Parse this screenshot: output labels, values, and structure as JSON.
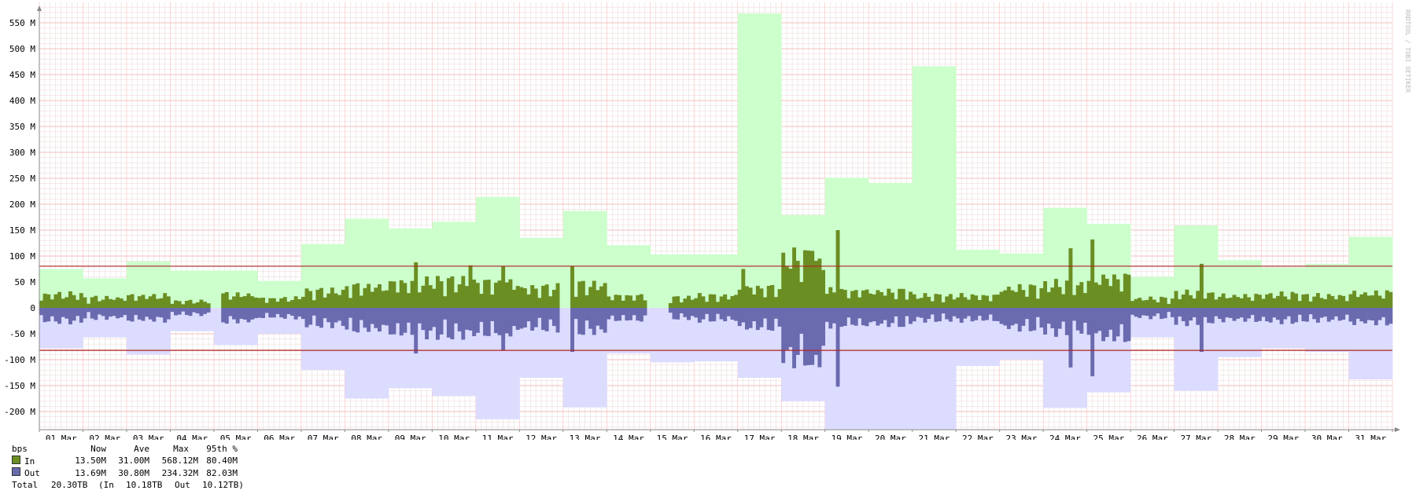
{
  "watermark": "RRDTOOL / TOBI OETIKER",
  "colors": {
    "in_bar": "#6b8e23",
    "in_max": "#ccffcc",
    "out_bar": "#6a6aaf",
    "out_max": "#dcdcff",
    "p95_line": "#b22222",
    "grid_major": "#f4b0b0",
    "grid_minor": "#f7dada",
    "vgrid": "#d9d9d9"
  },
  "legend": {
    "header": [
      "bps",
      "Now",
      "Ave",
      "Max",
      "95th %"
    ],
    "rows": [
      {
        "name": "In",
        "now": "13.50M",
        "ave": "31.00M",
        "max": "568.12M",
        "p95": "80.40M"
      },
      {
        "name": "Out",
        "now": "13.69M",
        "ave": "30.80M",
        "max": "234.32M",
        "p95": "82.03M"
      }
    ],
    "total": {
      "label": "Total",
      "value": "20.30TB",
      "in_label": "(In",
      "in_value": "10.18TB",
      "out_label": "Out",
      "out_value": "10.12TB)"
    }
  },
  "chart_data": {
    "type": "area",
    "y_unit": "bps",
    "ylim": [
      -235000000,
      590000000
    ],
    "yticks": [
      -200000000,
      -150000000,
      -100000000,
      -50000000,
      0,
      50000000,
      100000000,
      150000000,
      200000000,
      250000000,
      300000000,
      350000000,
      400000000,
      450000000,
      500000000,
      550000000
    ],
    "ytick_labels": [
      "-200 M",
      "-150 M",
      "-100 M",
      "-50 M",
      "0",
      "50 M",
      "100 M",
      "150 M",
      "200 M",
      "250 M",
      "300 M",
      "350 M",
      "400 M",
      "450 M",
      "500 M",
      "550 M"
    ],
    "x_labels": [
      "01 Mar",
      "02 Mar",
      "03 Mar",
      "04 Mar",
      "05 Mar",
      "06 Mar",
      "07 Mar",
      "08 Mar",
      "09 Mar",
      "10 Mar",
      "11 Mar",
      "12 Mar",
      "13 Mar",
      "14 Mar",
      "15 Mar",
      "16 Mar",
      "17 Mar",
      "18 Mar",
      "19 Mar",
      "20 Mar",
      "21 Mar",
      "22 Mar",
      "23 Mar",
      "24 Mar",
      "25 Mar",
      "26 Mar",
      "27 Mar",
      "28 Mar",
      "29 Mar",
      "30 Mar",
      "31 Mar"
    ],
    "p95_in": 80400000,
    "p95_out": -82030000,
    "daily_max_in": [
      75000000,
      57000000,
      90000000,
      72000000,
      72000000,
      52000000,
      123000000,
      172000000,
      153000000,
      166000000,
      214000000,
      135000000,
      187000000,
      121000000,
      103000000,
      103000000,
      568000000,
      179000000,
      251000000,
      241000000,
      466000000,
      112000000,
      105000000,
      193000000,
      162000000,
      60000000,
      159000000,
      92000000,
      78000000,
      85000000,
      137000000
    ],
    "daily_max_out": [
      -78000000,
      -57000000,
      -90000000,
      -45000000,
      -72000000,
      -50000000,
      -120000000,
      -175000000,
      -155000000,
      -170000000,
      -215000000,
      -135000000,
      -192000000,
      -88000000,
      -105000000,
      -103000000,
      -135000000,
      -180000000,
      -234000000,
      -234000000,
      -234000000,
      -112000000,
      -100000000,
      -193000000,
      -163000000,
      -57000000,
      -160000000,
      -95000000,
      -78000000,
      -85000000,
      -138000000
    ],
    "daily_avg_in": [
      20000000,
      15000000,
      18000000,
      10000000,
      20000000,
      14000000,
      25000000,
      32000000,
      38000000,
      40000000,
      38000000,
      30000000,
      35000000,
      18000000,
      15000000,
      18000000,
      30000000,
      75000000,
      25000000,
      25000000,
      18000000,
      18000000,
      30000000,
      35000000,
      45000000,
      14000000,
      22000000,
      18000000,
      20000000,
      18000000,
      22000000
    ],
    "daily_avg_out": [
      -20000000,
      -15000000,
      -18000000,
      -10000000,
      -20000000,
      -14000000,
      -25000000,
      -32000000,
      -38000000,
      -40000000,
      -38000000,
      -30000000,
      -35000000,
      -18000000,
      -15000000,
      -18000000,
      -30000000,
      -75000000,
      -25000000,
      -25000000,
      -18000000,
      -18000000,
      -30000000,
      -35000000,
      -45000000,
      -14000000,
      -22000000,
      -18000000,
      -20000000,
      -18000000,
      -22000000
    ],
    "spikes_in": [
      {
        "t": 8.6,
        "v": 88000000
      },
      {
        "t": 9.9,
        "v": 82000000
      },
      {
        "t": 10.6,
        "v": 80000000
      },
      {
        "t": 12.2,
        "v": 80000000
      },
      {
        "t": 16.1,
        "v": 75000000
      },
      {
        "t": 17.7,
        "v": 110000000
      },
      {
        "t": 17.9,
        "v": 95000000
      },
      {
        "t": 18.3,
        "v": 150000000
      },
      {
        "t": 23.6,
        "v": 115000000
      },
      {
        "t": 24.1,
        "v": 132000000
      },
      {
        "t": 26.6,
        "v": 85000000
      }
    ],
    "spikes_out": [
      {
        "t": 8.6,
        "v": -88000000
      },
      {
        "t": 10.6,
        "v": -82000000
      },
      {
        "t": 12.2,
        "v": -85000000
      },
      {
        "t": 17.7,
        "v": -110000000
      },
      {
        "t": 18.3,
        "v": -152000000
      },
      {
        "t": 23.6,
        "v": -115000000
      },
      {
        "t": 24.1,
        "v": -132000000
      },
      {
        "t": 26.6,
        "v": -85000000
      }
    ],
    "gaps": [
      [
        3.95,
        4.2
      ],
      [
        11.95,
        12.15
      ],
      [
        13.95,
        14.45
      ]
    ]
  }
}
